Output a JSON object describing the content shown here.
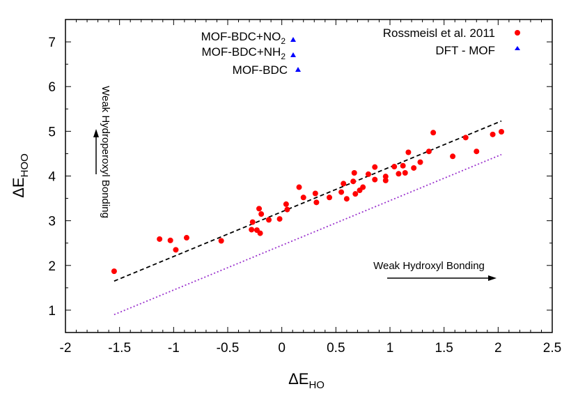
{
  "chart_data": {
    "type": "scatter",
    "xlabel": "ΔE",
    "xlabel_sub": "HO",
    "ylabel": "ΔE",
    "ylabel_sub": "HOO",
    "xlim": [
      -2,
      2.5
    ],
    "ylim": [
      0.5,
      7.5
    ],
    "xticks": [
      -2,
      -1.5,
      -1,
      -0.5,
      0,
      0.5,
      1,
      1.5,
      2,
      2.5
    ],
    "xtick_labels": [
      "-2",
      "-1.5",
      "-1",
      "-0.5",
      "0",
      "0.5",
      "1",
      "1.5",
      "2",
      "2.5"
    ],
    "yticks": [
      1,
      2,
      3,
      4,
      5,
      6,
      7
    ],
    "ytick_labels": [
      "1",
      "2",
      "3",
      "4",
      "5",
      "6",
      "7"
    ],
    "grid": false,
    "legend_position": "top-right",
    "series": [
      {
        "name": "Rossmeisl et al. 2011",
        "marker": "circle",
        "color": "#ff0000",
        "points": [
          [
            -1.55,
            1.87
          ],
          [
            -1.13,
            2.59
          ],
          [
            -1.03,
            2.56
          ],
          [
            -0.98,
            2.35
          ],
          [
            -0.88,
            2.62
          ],
          [
            -0.56,
            2.55
          ],
          [
            -0.28,
            2.8
          ],
          [
            -0.27,
            2.97
          ],
          [
            -0.23,
            2.79
          ],
          [
            -0.21,
            3.27
          ],
          [
            -0.2,
            2.72
          ],
          [
            -0.19,
            3.15
          ],
          [
            -0.12,
            3.02
          ],
          [
            -0.02,
            3.04
          ],
          [
            0.04,
            3.37
          ],
          [
            0.05,
            3.25
          ],
          [
            0.16,
            3.75
          ],
          [
            0.2,
            3.52
          ],
          [
            0.31,
            3.61
          ],
          [
            0.32,
            3.41
          ],
          [
            0.44,
            3.52
          ],
          [
            0.55,
            3.64
          ],
          [
            0.57,
            3.83
          ],
          [
            0.6,
            3.49
          ],
          [
            0.66,
            3.88
          ],
          [
            0.67,
            4.07
          ],
          [
            0.68,
            3.6
          ],
          [
            0.72,
            3.68
          ],
          [
            0.75,
            3.75
          ],
          [
            0.8,
            4.04
          ],
          [
            0.86,
            4.2
          ],
          [
            0.86,
            3.92
          ],
          [
            0.96,
            3.99
          ],
          [
            0.96,
            3.9
          ],
          [
            1.04,
            4.21
          ],
          [
            1.08,
            4.05
          ],
          [
            1.12,
            4.23
          ],
          [
            1.14,
            4.07
          ],
          [
            1.17,
            4.53
          ],
          [
            1.22,
            4.18
          ],
          [
            1.28,
            4.31
          ],
          [
            1.36,
            4.55
          ],
          [
            1.4,
            4.97
          ],
          [
            1.58,
            4.44
          ],
          [
            1.7,
            4.86
          ],
          [
            1.8,
            4.55
          ],
          [
            1.95,
            4.93
          ],
          [
            2.03,
            4.99
          ]
        ]
      },
      {
        "name": "DFT - MOF",
        "marker": "triangle",
        "color": "#0000ff",
        "points": []
      }
    ],
    "lines": [
      {
        "name": "fit",
        "style": "dashed",
        "color": "#000000",
        "x": [
          -1.55,
          2.03
        ],
        "y": [
          1.65,
          5.23
        ]
      },
      {
        "name": "ideal",
        "style": "dotted",
        "color": "#9a32cd",
        "x": [
          -1.55,
          2.03
        ],
        "y": [
          0.9,
          4.48
        ]
      }
    ],
    "legend": {
      "entries": [
        {
          "label": "Rossmeisl et al. 2011",
          "marker": "circle",
          "color": "#ff0000"
        },
        {
          "label": "DFT - MOF",
          "marker": "triangle",
          "color": "#0000ff"
        }
      ]
    },
    "mof_labels": [
      {
        "main": "MOF-BDC+NO",
        "sub": "2"
      },
      {
        "main": "MOF-BDC+NH",
        "sub": "2"
      },
      {
        "main": "MOF-BDC",
        "sub": ""
      }
    ],
    "annotations": {
      "vertical": "Weak Hydroperoxyl Bonding",
      "horizontal": "Weak Hydroxyl Bonding"
    }
  }
}
